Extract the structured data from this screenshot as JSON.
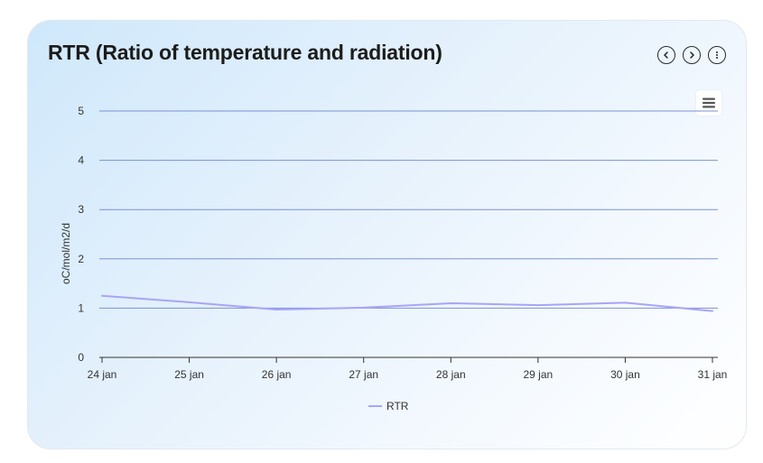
{
  "card": {
    "title": "RTR (Ratio of temperature and radiation)"
  },
  "controls": {
    "prev_icon": "chevron-left-icon",
    "next_icon": "chevron-right-icon",
    "more_icon": "more-vertical-icon",
    "menu_icon": "hamburger-menu-icon"
  },
  "colors": {
    "series": "#a8a4f7",
    "grid": "#7a92d6",
    "text": "#333333"
  },
  "chart_data": {
    "type": "line",
    "title": "",
    "xlabel": "",
    "ylabel": "oC/mol/m2/d",
    "categories": [
      "24 jan",
      "25 jan",
      "26 jan",
      "27 jan",
      "28 jan",
      "29 jan",
      "30 jan",
      "31 jan"
    ],
    "yticks": [
      "0",
      "1",
      "2",
      "3",
      "4",
      "5"
    ],
    "ylim": [
      0,
      5
    ],
    "series": [
      {
        "name": "RTR",
        "values": [
          1.25,
          1.12,
          0.97,
          1.01,
          1.1,
          1.06,
          1.11,
          0.94
        ]
      }
    ],
    "legend": {
      "position": "bottom-center"
    },
    "grid": true
  }
}
